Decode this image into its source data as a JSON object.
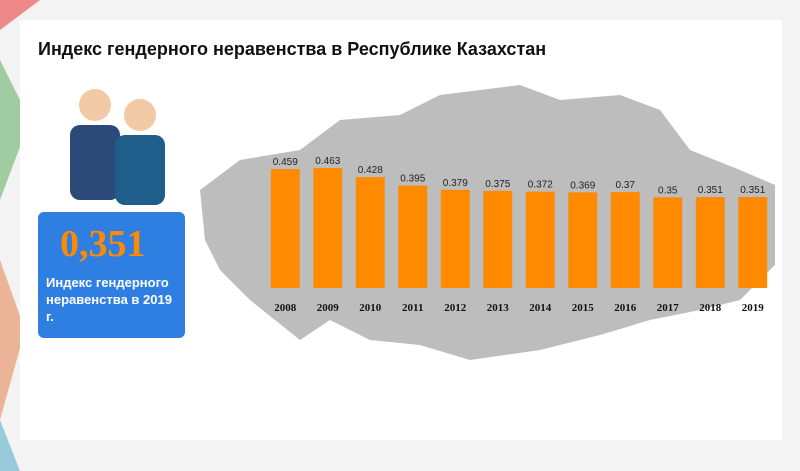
{
  "chart_data": {
    "type": "bar",
    "title": "Индекс гендерного неравенства в Республике Казахстан",
    "highlight": {
      "value_text": "0,351",
      "caption": "Индекс гендерного неравенства в 2019 г."
    },
    "categories": [
      "2008",
      "2009",
      "2010",
      "2011",
      "2012",
      "2013",
      "2014",
      "2015",
      "2016",
      "2017",
      "2018",
      "2019"
    ],
    "values": [
      0.459,
      0.463,
      0.428,
      0.395,
      0.379,
      0.375,
      0.372,
      0.369,
      0.37,
      0.35,
      0.351,
      0.351
    ],
    "color": "#ff8a00"
  }
}
